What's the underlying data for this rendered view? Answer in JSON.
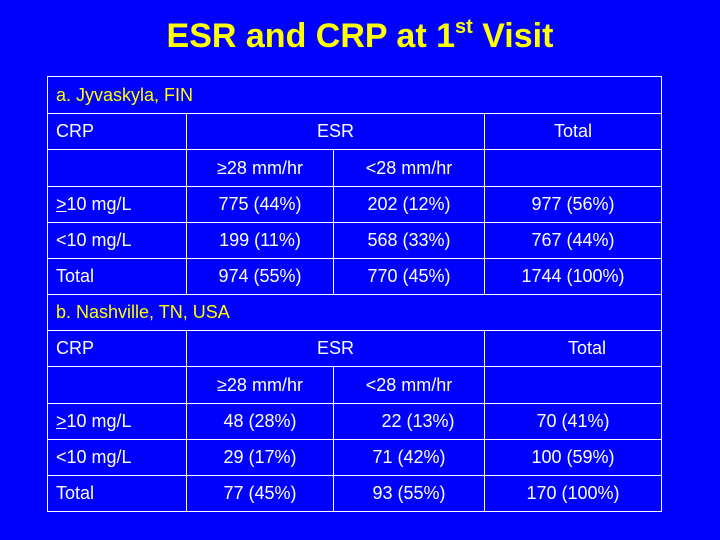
{
  "title": {
    "main": "ESR and CRP at 1",
    "sup": "st",
    "suffix": " Visit"
  },
  "sections": [
    {
      "name": "a.  Jyvaskyla, FIN",
      "header": {
        "crp": "CRP",
        "esr": "ESR",
        "total": "Total"
      },
      "subheader": {
        "high": "≥28 mm/hr",
        "low": "<28 mm/hr"
      },
      "rows": [
        {
          "label_mark": ">",
          "label_rest": "10 mg/L",
          "high": "775 (44%)",
          "low": "202 (12%)",
          "total": "977 (56%)"
        },
        {
          "label_mark": "",
          "label_rest": "<10 mg/L",
          "high": "199 (11%)",
          "low": "568 (33%)",
          "total": "767 (44%)"
        },
        {
          "label_mark": "",
          "label_rest": "Total",
          "high": "974 (55%)",
          "low": "770 (45%)",
          "total": "1744 (100%)"
        }
      ]
    },
    {
      "name": "b. Nashville, TN, USA",
      "header": {
        "crp": "CRP",
        "esr": "ESR",
        "total": "Total"
      },
      "subheader": {
        "high": "≥28 mm/hr",
        "low": "<28 mm/hr"
      },
      "rows": [
        {
          "label_mark": ">",
          "label_rest": "10 mg/L",
          "high": "48 (28%)",
          "low": "22 (13%)",
          "total": "70 (41%)"
        },
        {
          "label_mark": "",
          "label_rest": "<10 mg/L",
          "high": "29 (17%)",
          "low": "71 (42%)",
          "total": "100 (59%)"
        },
        {
          "label_mark": "",
          "label_rest": "Total",
          "high": "77 (45%)",
          "low": "93 (55%)",
          "total": "170 (100%)"
        }
      ]
    }
  ],
  "colors": {
    "background": "#0000ff",
    "title": "#ffff00",
    "section": "#ffff00",
    "text": "#ffffff",
    "border": "#ffffff"
  }
}
